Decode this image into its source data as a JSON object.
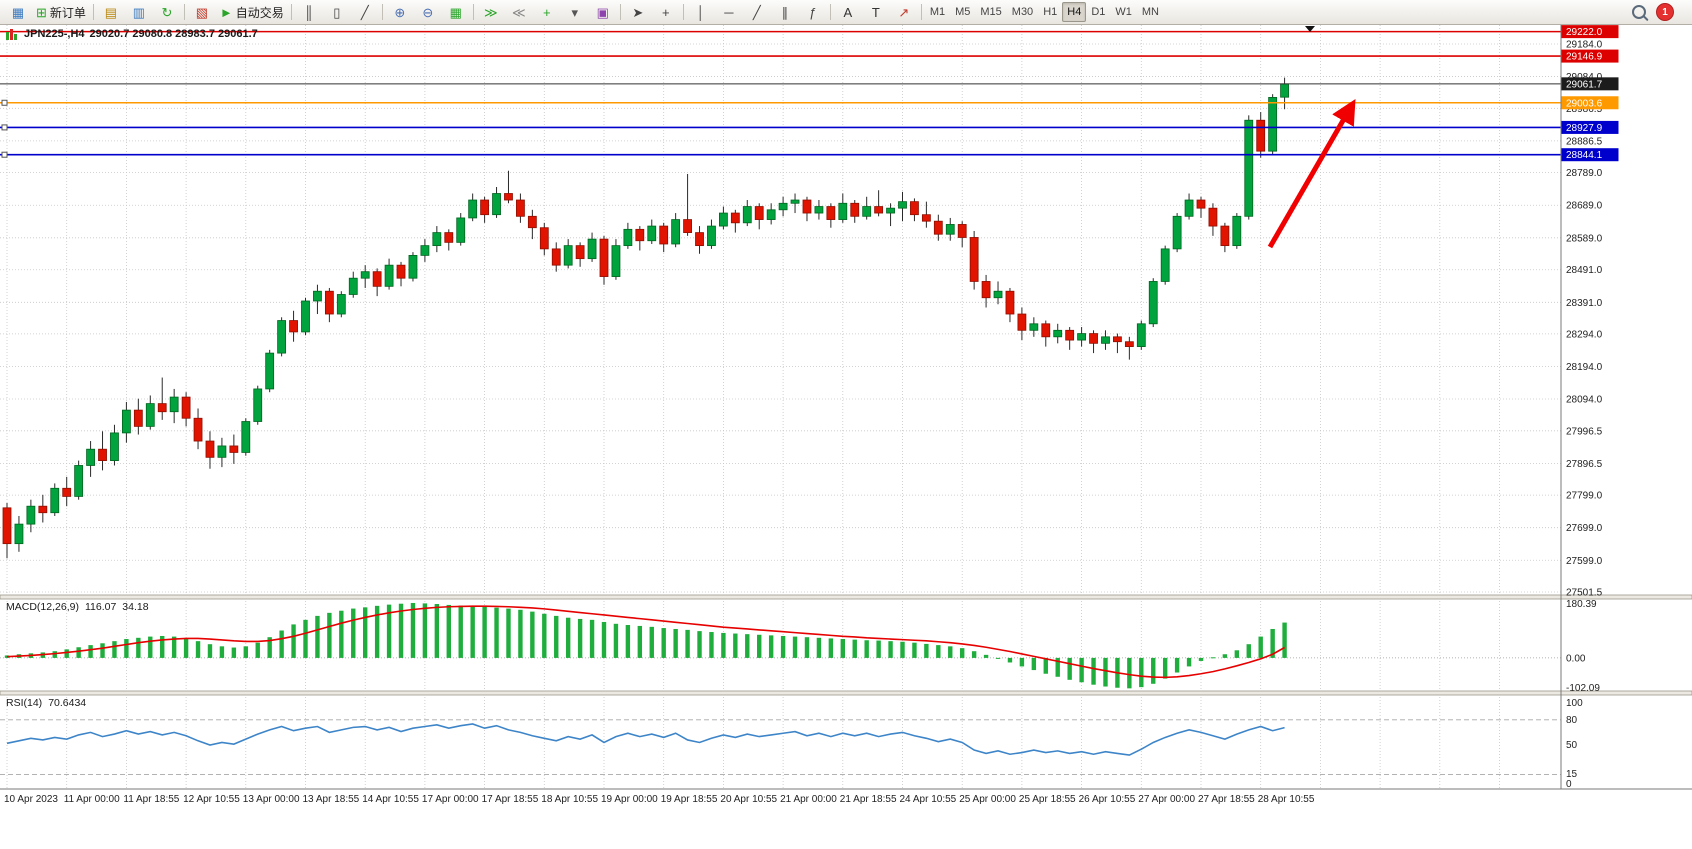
{
  "toolbar": {
    "groups": [
      {
        "items": [
          {
            "name": "new-chart-button",
            "glyph": "▦",
            "color": "#3a7abf"
          },
          {
            "name": "new-order-button",
            "glyph": "⊞",
            "color": "#2aa52a",
            "label": "新订单"
          }
        ]
      },
      {
        "items": [
          {
            "name": "profiles-button",
            "glyph": "▤",
            "color": "#b8860b"
          },
          {
            "name": "data-window-button",
            "glyph": "▥",
            "color": "#3a7abf"
          },
          {
            "name": "refresh-button",
            "glyph": "↻",
            "color": "#2aa52a"
          }
        ]
      },
      {
        "items": [
          {
            "name": "terminal-button",
            "glyph": "▧",
            "color": "#c0392b"
          },
          {
            "name": "autotrading-button",
            "glyph": "►",
            "color": "#2aa52a",
            "label": "自动交易"
          }
        ]
      },
      {
        "items": [
          {
            "name": "chart-bars-button",
            "glyph": "║",
            "color": "#444444"
          },
          {
            "name": "chart-candles-button",
            "glyph": "▯",
            "color": "#444444"
          },
          {
            "name": "chart-line-button",
            "glyph": "╱",
            "color": "#444444"
          }
        ]
      },
      {
        "items": [
          {
            "name": "zoom-in-button",
            "glyph": "⊕",
            "color": "#4a6fb5"
          },
          {
            "name": "zoom-out-button",
            "glyph": "⊖",
            "color": "#4a6fb5"
          },
          {
            "name": "tile-windows-button",
            "glyph": "▦",
            "color": "#2aa52a"
          }
        ]
      },
      {
        "items": [
          {
            "name": "auto-scroll-button",
            "glyph": "≫",
            "color": "#2aa52a"
          },
          {
            "name": "chart-shift-button",
            "glyph": "≪",
            "color": "#888888"
          },
          {
            "name": "indicators-button",
            "glyph": "+",
            "color": "#2aa52a"
          },
          {
            "name": "periods-button",
            "glyph": "▾",
            "color": "#555555"
          },
          {
            "name": "templates-button",
            "glyph": "▣",
            "color": "#8e44ad"
          }
        ]
      },
      {
        "items": [
          {
            "name": "cursor-button",
            "glyph": "➤",
            "color": "#444444"
          },
          {
            "name": "crosshair-button",
            "glyph": "+",
            "color": "#444444"
          }
        ]
      },
      {
        "items": [
          {
            "name": "vertical-line-button",
            "glyph": "│",
            "color": "#444444"
          },
          {
            "name": "horizontal-line-button",
            "glyph": "─",
            "color": "#444444"
          },
          {
            "name": "trendline-button",
            "glyph": "╱",
            "color": "#444444"
          },
          {
            "name": "channel-button",
            "glyph": "∥",
            "color": "#444444"
          },
          {
            "name": "fibonacci-button",
            "glyph": "ƒ",
            "color": "#444444"
          }
        ]
      },
      {
        "items": [
          {
            "name": "text-button",
            "glyph": "A",
            "color": "#333333"
          },
          {
            "name": "text-label-button",
            "glyph": "T",
            "color": "#333333"
          },
          {
            "name": "arrows-button",
            "glyph": "↗",
            "color": "#c0392b"
          }
        ]
      }
    ],
    "timeframes": {
      "items": [
        "M1",
        "M5",
        "M15",
        "M30",
        "H1",
        "H4",
        "D1",
        "W1",
        "MN"
      ],
      "active": "H4"
    },
    "notification_count": "1"
  },
  "chart_header": {
    "symbol": "JPN225-,H4",
    "ohlc": "29020.7 29080.8 28983.7 29061.7"
  },
  "price_axis": {
    "grid_prices": [
      29184.0,
      29084.0,
      28986.5,
      28886.5,
      28789.0,
      28689.0,
      28589.0,
      28491.0,
      28391.0,
      28294.0,
      28194.0,
      28094.0,
      27996.5,
      27896.5,
      27799.0,
      27699.0,
      27599.0,
      27501.5
    ]
  },
  "overlay_lines": [
    {
      "name": "resistance-line-1",
      "price": 29222.0,
      "color": "#dd0000",
      "handle": false
    },
    {
      "name": "resistance-line-2",
      "price": 29146.9,
      "color": "#dd0000",
      "handle": false
    },
    {
      "name": "current-price-line",
      "price": 29061.7,
      "color": "#333333",
      "label_bg": "#1c1c1c",
      "handle": false
    },
    {
      "name": "orange-support-line",
      "price": 29003.6,
      "color": "#ff9900",
      "handle": true
    },
    {
      "name": "blue-support-line-1",
      "price": 28927.9,
      "color": "#0000cc",
      "handle": true
    },
    {
      "name": "blue-support-line-2",
      "price": 28844.1,
      "color": "#0000cc",
      "handle": true
    }
  ],
  "time_labels": [
    "10 Apr 2023",
    "11 Apr 00:00",
    "11 Apr 18:55",
    "12 Apr 10:55",
    "13 Apr 00:00",
    "13 Apr 18:55",
    "14 Apr 10:55",
    "17 Apr 00:00",
    "17 Apr 18:55",
    "18 Apr 10:55",
    "19 Apr 00:00",
    "19 Apr 18:55",
    "20 Apr 10:55",
    "21 Apr 00:00",
    "21 Apr 18:55",
    "24 Apr 10:55",
    "25 Apr 00:00",
    "25 Apr 18:55",
    "26 Apr 10:55",
    "27 Apr 00:00",
    "27 Apr 18:55",
    "28 Apr 10:55"
  ],
  "chart_data": {
    "type": "candlestick",
    "symbol": "JPN225-",
    "period": "H4",
    "bull_color": "#00a33e",
    "bear_color": "#e01400",
    "candles": [
      [
        27760,
        27775,
        27605,
        27650
      ],
      [
        27650,
        27735,
        27625,
        27710
      ],
      [
        27710,
        27785,
        27685,
        27765
      ],
      [
        27765,
        27800,
        27715,
        27745
      ],
      [
        27745,
        27835,
        27735,
        27820
      ],
      [
        27820,
        27855,
        27765,
        27795
      ],
      [
        27795,
        27905,
        27785,
        27890
      ],
      [
        27890,
        27965,
        27855,
        27940
      ],
      [
        27940,
        27995,
        27875,
        27905
      ],
      [
        27905,
        28015,
        27890,
        27990
      ],
      [
        27990,
        28085,
        27960,
        28060
      ],
      [
        28060,
        28095,
        27985,
        28010
      ],
      [
        28010,
        28105,
        28000,
        28080
      ],
      [
        28080,
        28160,
        28030,
        28055
      ],
      [
        28055,
        28125,
        28020,
        28100
      ],
      [
        28100,
        28115,
        28010,
        28035
      ],
      [
        28035,
        28065,
        27940,
        27965
      ],
      [
        27965,
        27995,
        27880,
        27915
      ],
      [
        27915,
        27975,
        27885,
        27950
      ],
      [
        27950,
        27985,
        27895,
        27930
      ],
      [
        27930,
        28035,
        27920,
        28025
      ],
      [
        28025,
        28135,
        28015,
        28125
      ],
      [
        28125,
        28245,
        28115,
        28235
      ],
      [
        28235,
        28345,
        28225,
        28335
      ],
      [
        28335,
        28365,
        28270,
        28300
      ],
      [
        28300,
        28405,
        28290,
        28395
      ],
      [
        28395,
        28445,
        28355,
        28425
      ],
      [
        28425,
        28435,
        28330,
        28355
      ],
      [
        28355,
        28425,
        28345,
        28415
      ],
      [
        28415,
        28485,
        28405,
        28465
      ],
      [
        28465,
        28505,
        28435,
        28485
      ],
      [
        28485,
        28495,
        28410,
        28440
      ],
      [
        28440,
        28525,
        28430,
        28505
      ],
      [
        28505,
        28515,
        28440,
        28465
      ],
      [
        28465,
        28545,
        28455,
        28535
      ],
      [
        28535,
        28585,
        28515,
        28565
      ],
      [
        28565,
        28625,
        28545,
        28605
      ],
      [
        28605,
        28615,
        28550,
        28575
      ],
      [
        28575,
        28665,
        28565,
        28650
      ],
      [
        28650,
        28725,
        28640,
        28705
      ],
      [
        28705,
        28715,
        28635,
        28660
      ],
      [
        28660,
        28745,
        28650,
        28725
      ],
      [
        28725,
        28795,
        28695,
        28705
      ],
      [
        28705,
        28725,
        28635,
        28655
      ],
      [
        28655,
        28675,
        28585,
        28620
      ],
      [
        28620,
        28635,
        28535,
        28555
      ],
      [
        28555,
        28575,
        28485,
        28505
      ],
      [
        28505,
        28585,
        28495,
        28565
      ],
      [
        28565,
        28575,
        28500,
        28525
      ],
      [
        28525,
        28605,
        28515,
        28585
      ],
      [
        28585,
        28595,
        28445,
        28470
      ],
      [
        28470,
        28585,
        28460,
        28565
      ],
      [
        28565,
        28635,
        28555,
        28615
      ],
      [
        28615,
        28625,
        28550,
        28580
      ],
      [
        28580,
        28645,
        28570,
        28625
      ],
      [
        28625,
        28635,
        28545,
        28570
      ],
      [
        28570,
        28665,
        28560,
        28645
      ],
      [
        28645,
        28785,
        28595,
        28605
      ],
      [
        28605,
        28625,
        28540,
        28565
      ],
      [
        28565,
        28645,
        28555,
        28625
      ],
      [
        28625,
        28685,
        28615,
        28665
      ],
      [
        28665,
        28675,
        28605,
        28635
      ],
      [
        28635,
        28705,
        28625,
        28685
      ],
      [
        28685,
        28695,
        28615,
        28645
      ],
      [
        28645,
        28695,
        28630,
        28675
      ],
      [
        28675,
        28715,
        28655,
        28695
      ],
      [
        28695,
        28725,
        28665,
        28705
      ],
      [
        28705,
        28715,
        28640,
        28665
      ],
      [
        28665,
        28705,
        28645,
        28685
      ],
      [
        28685,
        28695,
        28620,
        28645
      ],
      [
        28645,
        28725,
        28635,
        28695
      ],
      [
        28695,
        28705,
        28635,
        28655
      ],
      [
        28655,
        28715,
        28645,
        28685
      ],
      [
        28685,
        28735,
        28655,
        28665
      ],
      [
        28665,
        28695,
        28625,
        28680
      ],
      [
        28680,
        28730,
        28640,
        28700
      ],
      [
        28700,
        28710,
        28640,
        28660
      ],
      [
        28660,
        28700,
        28620,
        28640
      ],
      [
        28640,
        28660,
        28580,
        28600
      ],
      [
        28600,
        28650,
        28580,
        28630
      ],
      [
        28630,
        28640,
        28560,
        28590
      ],
      [
        28590,
        28610,
        28430,
        28455
      ],
      [
        28455,
        28475,
        28375,
        28405
      ],
      [
        28405,
        28455,
        28385,
        28425
      ],
      [
        28425,
        28435,
        28330,
        28355
      ],
      [
        28355,
        28375,
        28275,
        28305
      ],
      [
        28305,
        28345,
        28285,
        28325
      ],
      [
        28325,
        28335,
        28255,
        28285
      ],
      [
        28285,
        28325,
        28265,
        28305
      ],
      [
        28305,
        28315,
        28245,
        28275
      ],
      [
        28275,
        28315,
        28255,
        28295
      ],
      [
        28295,
        28305,
        28235,
        28265
      ],
      [
        28265,
        28305,
        28245,
        28285
      ],
      [
        28285,
        28295,
        28235,
        28270
      ],
      [
        28270,
        28285,
        28215,
        28255
      ],
      [
        28255,
        28335,
        28245,
        28325
      ],
      [
        28325,
        28465,
        28315,
        28455
      ],
      [
        28455,
        28565,
        28445,
        28555
      ],
      [
        28555,
        28665,
        28545,
        28655
      ],
      [
        28655,
        28725,
        28645,
        28705
      ],
      [
        28705,
        28715,
        28650,
        28680
      ],
      [
        28680,
        28695,
        28595,
        28625
      ],
      [
        28625,
        28635,
        28545,
        28565
      ],
      [
        28565,
        28665,
        28555,
        28655
      ],
      [
        28655,
        28965,
        28645,
        28950
      ],
      [
        28950,
        28975,
        28835,
        28855
      ],
      [
        28855,
        29030,
        28845,
        29020
      ],
      [
        29020.7,
        29080.8,
        28983.7,
        29061.7
      ]
    ],
    "indicators": {
      "macd": {
        "label": "MACD(12,26,9)",
        "value_main": "116.07",
        "value_signal": "34.18",
        "hist_color": "#1fae3d",
        "signal_color": "#e60000",
        "axis": [
          "180.39",
          "0.00",
          "-102.09"
        ],
        "axis_max": 180.39,
        "axis_min": -102.09,
        "hist": [
          8,
          12,
          15,
          18,
          22,
          28,
          35,
          42,
          48,
          55,
          62,
          66,
          70,
          72,
          70,
          65,
          55,
          45,
          38,
          34,
          38,
          50,
          68,
          90,
          110,
          125,
          138,
          148,
          155,
          162,
          166,
          171,
          175,
          178,
          180.39,
          179,
          177,
          174,
          172,
          170,
          168,
          165,
          162,
          158,
          152,
          145,
          138,
          132,
          128,
          125,
          118,
          112,
          108,
          105,
          102,
          98,
          95,
          92,
          88,
          85,
          82,
          80,
          78,
          76,
          74,
          72,
          70,
          68,
          66,
          64,
          62,
          60,
          58,
          57,
          55,
          53,
          50,
          46,
          42,
          38,
          32,
          22,
          10,
          -2,
          -15,
          -28,
          -40,
          -52,
          -62,
          -72,
          -80,
          -88,
          -94,
          -98,
          -100,
          -96,
          -85,
          -68,
          -48,
          -28,
          -10,
          2,
          12,
          25,
          45,
          70,
          95,
          116.07
        ],
        "signal": [
          4,
          6,
          8,
          11,
          14,
          18,
          22,
          27,
          32,
          38,
          44,
          50,
          55,
          59,
          62,
          64,
          64,
          62,
          59,
          56,
          54,
          54,
          57,
          63,
          71,
          81,
          92,
          103,
          114,
          124,
          133,
          141,
          148,
          154,
          159,
          163,
          166,
          168,
          169,
          170,
          170,
          169,
          168,
          166,
          164,
          161,
          157,
          153,
          149,
          145,
          141,
          137,
          133,
          129,
          125,
          121,
          117,
          113,
          109,
          105,
          101,
          98,
          95,
          92,
          89,
          86,
          83,
          80,
          77,
          74,
          71,
          69,
          66,
          64,
          62,
          60,
          58,
          56,
          53,
          50,
          46,
          41,
          35,
          28,
          21,
          13,
          5,
          -3,
          -11,
          -19,
          -27,
          -35,
          -42,
          -49,
          -55,
          -60,
          -63,
          -64,
          -62,
          -58,
          -52,
          -45,
          -36,
          -26,
          -15,
          -3,
          12,
          34.18
        ]
      },
      "rsi": {
        "label": "RSI(14)",
        "value": "70.6434",
        "line_color": "#3d85c8",
        "axis": [
          "100",
          "80",
          "50",
          "15",
          "0"
        ],
        "levels": [
          80,
          15
        ],
        "values": [
          52,
          55,
          58,
          56,
          59,
          57,
          62,
          65,
          60,
          63,
          67,
          63,
          66,
          62,
          65,
          61,
          55,
          50,
          53,
          51,
          57,
          63,
          68,
          72,
          67,
          70,
          72,
          65,
          68,
          71,
          72,
          68,
          71,
          66,
          70,
          72,
          74,
          70,
          73,
          75,
          70,
          73,
          68,
          65,
          61,
          58,
          55,
          60,
          57,
          62,
          53,
          60,
          64,
          60,
          63,
          59,
          64,
          56,
          53,
          58,
          62,
          59,
          63,
          60,
          62,
          64,
          66,
          61,
          64,
          60,
          64,
          61,
          64,
          60,
          63,
          65,
          61,
          58,
          54,
          57,
          53,
          44,
          40,
          43,
          39,
          41,
          44,
          41,
          43,
          40,
          42,
          39,
          42,
          40,
          38,
          45,
          53,
          59,
          64,
          68,
          65,
          61,
          57,
          63,
          68,
          72,
          67,
          70.64
        ]
      }
    }
  },
  "annotations": {
    "arrow": {
      "color": "#f00000",
      "from": [
        1270,
        222
      ],
      "to": [
        1352,
        80
      ]
    }
  }
}
